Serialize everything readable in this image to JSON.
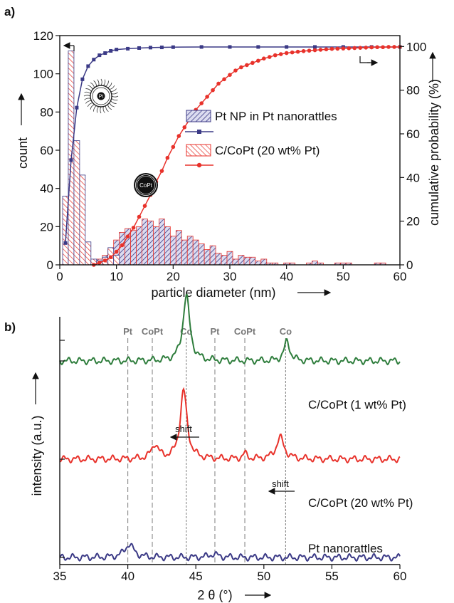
{
  "chart_data": [
    {
      "panel": "a)",
      "type": "bar",
      "xlabel": "particle diameter (nm)",
      "ylabel_left": "count",
      "ylabel_right": "cumulative probability (%)",
      "xlim": [
        0,
        60
      ],
      "ylim_left": [
        0,
        120
      ],
      "ylim_right": [
        0,
        105
      ],
      "xticks": [
        0,
        10,
        20,
        30,
        40,
        50,
        60
      ],
      "yticks_left": [
        0,
        20,
        40,
        60,
        80,
        100,
        120
      ],
      "yticks_right": [
        0,
        20,
        40,
        60,
        80,
        100
      ],
      "bin_width": 1,
      "icon_labels": {
        "pt": "Pt",
        "copt": "CoPt"
      },
      "series": [
        {
          "name": "Pt NP in Pt nanorattles",
          "color": "#3b3a86",
          "hist_x": [
            1,
            2,
            3,
            4,
            5,
            6,
            7,
            8,
            9,
            10
          ],
          "hist_counts": [
            36,
            112,
            65,
            47,
            12,
            3,
            2,
            4,
            9,
            5
          ],
          "cum_x": [
            1,
            2,
            3,
            4,
            5,
            6,
            7,
            8,
            9,
            10,
            12,
            14,
            16,
            18,
            20,
            25,
            30,
            35,
            40,
            45,
            50,
            55,
            60
          ],
          "cum_y": [
            10,
            48,
            72,
            85,
            91,
            94,
            96,
            97,
            98,
            98.6,
            99,
            99.3,
            99.5,
            99.6,
            99.7,
            99.8,
            99.8,
            99.8,
            99.8,
            99.8,
            99.8,
            99.8,
            99.8
          ]
        },
        {
          "name": "C/CoPt (20 wt% Pt)",
          "color": "#e8322b",
          "hist_x": [
            7,
            8,
            9,
            10,
            11,
            12,
            13,
            14,
            15,
            16,
            17,
            18,
            19,
            20,
            21,
            22,
            23,
            24,
            25,
            26,
            27,
            28,
            29,
            30,
            31,
            32,
            33,
            34,
            35,
            36,
            37,
            38,
            40,
            41,
            44,
            45,
            46,
            49,
            50,
            51,
            56,
            57
          ],
          "hist_counts": [
            3,
            5,
            8,
            13,
            17,
            19,
            18,
            20,
            24,
            23,
            20,
            24,
            20,
            15,
            18,
            13,
            15,
            13,
            11,
            8,
            10,
            6,
            5,
            7,
            3,
            5,
            4,
            4,
            2,
            3,
            1,
            1,
            1,
            1,
            1,
            2,
            1,
            1,
            1,
            1,
            1,
            1
          ],
          "cum_x": [
            6,
            7,
            8,
            9,
            10,
            11,
            12,
            13,
            14,
            15,
            16,
            17,
            18,
            19,
            20,
            21,
            22,
            23,
            24,
            25,
            26,
            27,
            28,
            29,
            30,
            31,
            32,
            33,
            34,
            35,
            36,
            37,
            38,
            39,
            40,
            41,
            42,
            43,
            44,
            45,
            46,
            47,
            48,
            49,
            50,
            51,
            52,
            53,
            54,
            55,
            56,
            57,
            58,
            59,
            60
          ],
          "cum_y": [
            0,
            1,
            2,
            3.5,
            6,
            9,
            13,
            17,
            22,
            27,
            32,
            38,
            43,
            49,
            54,
            59,
            63,
            67,
            71,
            74,
            77,
            80,
            83,
            85,
            87,
            89,
            90.5,
            91.5,
            92.5,
            93.5,
            94.5,
            95.2,
            96,
            96.5,
            97,
            97.3,
            97.6,
            97.9,
            98.1,
            98.3,
            98.5,
            98.7,
            98.9,
            99,
            99.1,
            99.2,
            99.3,
            99.4,
            99.5,
            99.6,
            99.7,
            99.7,
            99.8,
            99.8,
            99.8
          ]
        }
      ]
    },
    {
      "panel": "b)",
      "type": "line",
      "xlabel": "2 θ (°)",
      "ylabel": "intensity (a.u.)",
      "xlim": [
        35,
        60
      ],
      "xticks": [
        35,
        40,
        45,
        50,
        55,
        60
      ],
      "reference_lines": [
        {
          "label": "Pt",
          "x": 40.0
        },
        {
          "label": "CoPt",
          "x": 41.8
        },
        {
          "label": "Co",
          "x": 44.3
        },
        {
          "label": "Pt",
          "x": 46.4
        },
        {
          "label": "CoPt",
          "x": 48.6
        },
        {
          "label": "Co",
          "x": 51.6
        }
      ],
      "annotations": [
        "shift",
        "shift"
      ],
      "series": [
        {
          "name": "C/CoPt (1 wt% Pt)",
          "color": "#2e7d3c",
          "baseline": 3,
          "peaks": [
            {
              "x": 44.3,
              "height": 1.0,
              "width": 0.3
            },
            {
              "x": 51.7,
              "height": 0.3,
              "width": 0.25
            }
          ]
        },
        {
          "name": "C/CoPt (20 wt% Pt)",
          "color": "#e8322b",
          "baseline": 1.5,
          "peaks": [
            {
              "x": 42.0,
              "height": 0.22,
              "width": 0.3
            },
            {
              "x": 44.1,
              "height": 1.05,
              "width": 0.3
            },
            {
              "x": 48.6,
              "height": 0.08,
              "width": 0.2
            },
            {
              "x": 51.2,
              "height": 0.33,
              "width": 0.35
            }
          ]
        },
        {
          "name": "Pt nanorattles",
          "color": "#3b3a86",
          "baseline": 0,
          "peaks": [
            {
              "x": 40.1,
              "height": 0.2,
              "width": 0.4
            },
            {
              "x": 46.3,
              "height": 0.05,
              "width": 0.4
            }
          ]
        }
      ]
    }
  ]
}
